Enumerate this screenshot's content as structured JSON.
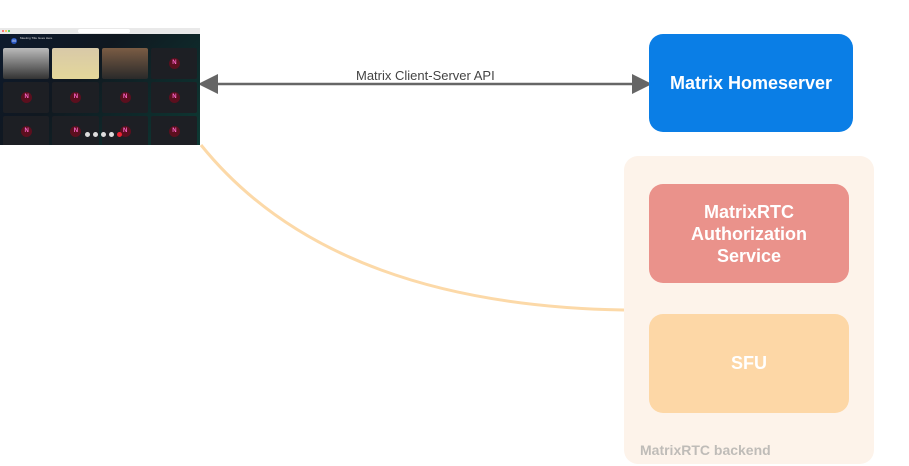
{
  "screenshot": {
    "meeting_title": "Meeting Title Goes Here",
    "avatar_letter": "M",
    "tiles": [
      "video",
      "video",
      "video",
      "N",
      "N",
      "N",
      "N",
      "N",
      "N",
      "N",
      "N",
      "N"
    ],
    "colors": {
      "accent": "#0dbd8b"
    }
  },
  "connections": {
    "client_server_api": "Matrix Client-Server API"
  },
  "nodes": {
    "homeserver": "Matrix Homeserver",
    "auth_service": "MatrixRTC Authorization Service",
    "sfu": "SFU",
    "backend_group": "MatrixRTC backend"
  },
  "colors": {
    "homeserver": "#0a7ee6",
    "auth_service": "#ea928b",
    "sfu": "#fdd7a6",
    "backend_group": "#fdf3ea",
    "arrow": "#666666",
    "media_link": "#fcd9a8"
  }
}
